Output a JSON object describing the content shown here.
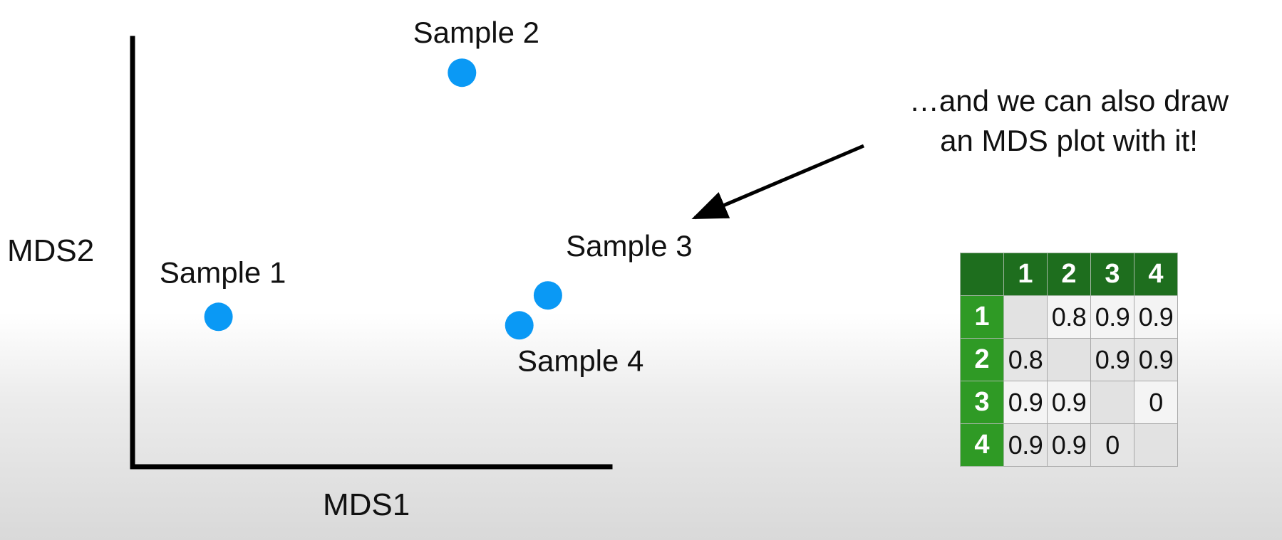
{
  "chart_data": {
    "type": "scatter",
    "title": "",
    "xlabel": "MDS1",
    "ylabel": "MDS2",
    "xlim": [
      0,
      10
    ],
    "ylim": [
      0,
      10
    ],
    "grid": false,
    "axis_ticks": false,
    "point_color": "#0a99f5",
    "points": [
      {
        "label": "Sample 1",
        "x": 1.8,
        "y": 3.5
      },
      {
        "label": "Sample 2",
        "x": 6.9,
        "y": 9.2
      },
      {
        "label": "Sample 3",
        "x": 8.7,
        "y": 4.0
      },
      {
        "label": "Sample 4",
        "x": 8.1,
        "y": 3.3
      }
    ]
  },
  "annotation": {
    "line1": "…and we can also draw",
    "line2": "an MDS plot with it!"
  },
  "distance_table": {
    "header_dark_color": "#1e6e1e",
    "header_light_color": "#2f9a25",
    "columns": [
      "1",
      "2",
      "3",
      "4"
    ],
    "rows": [
      {
        "label": "1",
        "cells": [
          "",
          "0.8",
          "0.9",
          "0.9"
        ]
      },
      {
        "label": "2",
        "cells": [
          "0.8",
          "",
          "0.9",
          "0.9"
        ]
      },
      {
        "label": "3",
        "cells": [
          "0.9",
          "0.9",
          "",
          "0"
        ]
      },
      {
        "label": "4",
        "cells": [
          "0.9",
          "0.9",
          "0",
          ""
        ]
      }
    ]
  }
}
